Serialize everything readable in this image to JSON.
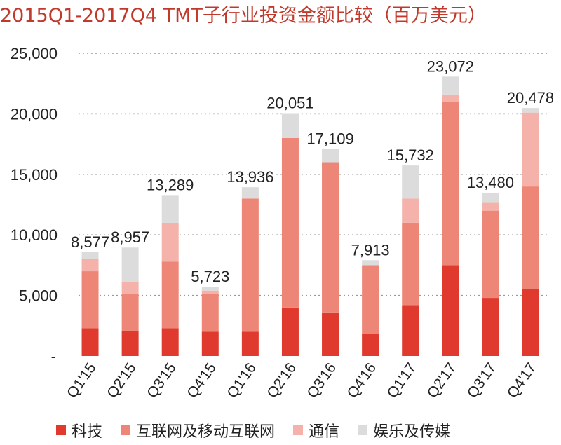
{
  "chart_data": {
    "type": "bar",
    "stacked": true,
    "title": "2015Q1-2017Q4 TMT子行业投资金额比较（百万美元）",
    "xlabel": "",
    "ylabel": "",
    "ylim": [
      0,
      25000
    ],
    "yticks": [
      "-",
      "5,000",
      "10,000",
      "15,000",
      "20,000",
      "25,000"
    ],
    "grid": true,
    "legend_position": "bottom",
    "categories": [
      "Q1'15",
      "Q2'15",
      "Q3'15",
      "Q4'15",
      "Q1'16",
      "Q2'16",
      "Q3'16",
      "Q4'16",
      "Q1'17",
      "Q2'17",
      "Q3'17",
      "Q4'17"
    ],
    "totals": [
      8577,
      8957,
      13289,
      5723,
      13936,
      20051,
      17109,
      7913,
      15732,
      23072,
      13480,
      20478
    ],
    "total_labels": [
      "8,577",
      "8,957",
      "13,289",
      "5,723",
      "13,936",
      "20,051",
      "17,109",
      "7,913",
      "15,732",
      "23,072",
      "13,480",
      "20,478"
    ],
    "series": [
      {
        "name": "科技",
        "color": "#e03a2e",
        "values": [
          2300,
          2100,
          2300,
          2000,
          2000,
          4000,
          3600,
          1800,
          4200,
          7500,
          4800,
          5500
        ]
      },
      {
        "name": "互联网及移动互联网",
        "color": "#ee8678",
        "values": [
          4700,
          3000,
          5500,
          3100,
          11000,
          14000,
          12400,
          5700,
          6800,
          13500,
          7200,
          8500
        ]
      },
      {
        "name": "通信",
        "color": "#f4b2aa",
        "values": [
          1000,
          1000,
          3200,
          300,
          0,
          0,
          0,
          0,
          2000,
          600,
          700,
          6100
        ]
      },
      {
        "name": "娱乐及传媒",
        "color": "#dcdcdc",
        "values": [
          577,
          2857,
          2289,
          323,
          936,
          2051,
          1109,
          413,
          2732,
          1472,
          780,
          378
        ]
      }
    ]
  }
}
